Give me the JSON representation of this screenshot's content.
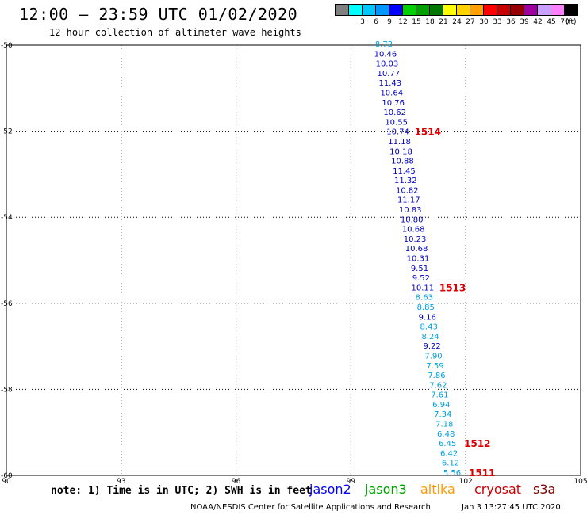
{
  "header": {
    "title": "12:00 – 23:59 UTC 01/02/2020",
    "subtitle": "12 hour collection of altimeter wave heights"
  },
  "legend": {
    "unit": "(ft)",
    "items": [
      {
        "label": "",
        "color": "#808080"
      },
      {
        "label": "3",
        "color": "#00ffff"
      },
      {
        "label": "6",
        "color": "#00c8ff"
      },
      {
        "label": "9",
        "color": "#0096ff"
      },
      {
        "label": "12",
        "color": "#0000ff"
      },
      {
        "label": "15",
        "color": "#00d000"
      },
      {
        "label": "18",
        "color": "#00a000"
      },
      {
        "label": "21",
        "color": "#007800"
      },
      {
        "label": "24",
        "color": "#ffff00"
      },
      {
        "label": "27",
        "color": "#ffd200"
      },
      {
        "label": "30",
        "color": "#ffa000"
      },
      {
        "label": "33",
        "color": "#ff0000"
      },
      {
        "label": "36",
        "color": "#c80000"
      },
      {
        "label": "39",
        "color": "#960000"
      },
      {
        "label": "42",
        "color": "#a000a0"
      },
      {
        "label": "45",
        "color": "#c8a0ff"
      },
      {
        "label": "70",
        "color": "#ff80ff"
      },
      {
        "label": "",
        "color": "#000000"
      }
    ]
  },
  "map": {
    "lon_range": [
      90,
      105
    ],
    "lat_range": [
      -60,
      -50
    ],
    "lon_ticks": [
      "90",
      "93",
      "96",
      "99",
      "102",
      "105"
    ],
    "lat_ticks": [
      "-50",
      "-52",
      "-54",
      "-56",
      "-58",
      "-60"
    ],
    "observations": [
      {
        "v": "8.72",
        "color": "#00a0e0"
      },
      {
        "v": "10.46",
        "color": "#0000c0"
      },
      {
        "v": "10.03",
        "color": "#0000c0"
      },
      {
        "v": "10.77",
        "color": "#0000c0"
      },
      {
        "v": "11.43",
        "color": "#0000c0"
      },
      {
        "v": "10.64",
        "color": "#0000c0"
      },
      {
        "v": "10.76",
        "color": "#0000c0"
      },
      {
        "v": "10.62",
        "color": "#0000c0"
      },
      {
        "v": "10.55",
        "color": "#0000c0"
      },
      {
        "v": "10.74",
        "color": "#0000c0"
      },
      {
        "v": "11.18",
        "color": "#0000c0"
      },
      {
        "v": "10.18",
        "color": "#0000c0"
      },
      {
        "v": "10.88",
        "color": "#0000c0"
      },
      {
        "v": "11.45",
        "color": "#0000c0"
      },
      {
        "v": "11.32",
        "color": "#0000c0"
      },
      {
        "v": "10.82",
        "color": "#0000c0"
      },
      {
        "v": "11.17",
        "color": "#0000c0"
      },
      {
        "v": "10.83",
        "color": "#0000c0"
      },
      {
        "v": "10.80",
        "color": "#0000c0"
      },
      {
        "v": "10.68",
        "color": "#0000c0"
      },
      {
        "v": "10.23",
        "color": "#0000c0"
      },
      {
        "v": "10.68",
        "color": "#0000c0"
      },
      {
        "v": "10.31",
        "color": "#0000c0"
      },
      {
        "v": "9.51",
        "color": "#0000c0"
      },
      {
        "v": "9.52",
        "color": "#0000c0"
      },
      {
        "v": "10.11",
        "color": "#0000c0"
      },
      {
        "v": "8.63",
        "color": "#00a0e0"
      },
      {
        "v": "8.85",
        "color": "#00a0e0"
      },
      {
        "v": "9.16",
        "color": "#0000c0"
      },
      {
        "v": "8.43",
        "color": "#00a0e0"
      },
      {
        "v": "8.24",
        "color": "#00a0e0"
      },
      {
        "v": "9.22",
        "color": "#0000c0"
      },
      {
        "v": "7.90",
        "color": "#00a0e0"
      },
      {
        "v": "7.59",
        "color": "#00a0e0"
      },
      {
        "v": "7.86",
        "color": "#00a0e0"
      },
      {
        "v": "7.62",
        "color": "#00a0e0"
      },
      {
        "v": "7.61",
        "color": "#00a0e0"
      },
      {
        "v": "6.94",
        "color": "#00a0e0"
      },
      {
        "v": "7.34",
        "color": "#00a0e0"
      },
      {
        "v": "7.18",
        "color": "#00a0e0"
      },
      {
        "v": "6.48",
        "color": "#00a0e0"
      },
      {
        "v": "6.45",
        "color": "#00a0e0"
      },
      {
        "v": "6.42",
        "color": "#00a0e0"
      },
      {
        "v": "6.12",
        "color": "#00a0e0"
      },
      {
        "v": "5.56",
        "color": "#00a0e0"
      }
    ],
    "time_marks": [
      {
        "label": "1514",
        "at_index": 9
      },
      {
        "label": "1513",
        "at_index": 25
      },
      {
        "label": "1512",
        "at_index": 41
      },
      {
        "label": "1511",
        "at_index": 44
      }
    ]
  },
  "footer": {
    "note": "note: 1) Time is in UTC; 2) SWH is in feet",
    "satellites": [
      {
        "name": "jason2",
        "color": "#0000ff"
      },
      {
        "name": "jason3",
        "color": "#00a000"
      },
      {
        "name": "altika",
        "color": "#ff9900"
      },
      {
        "name": "cryosat",
        "color": "#cc0000"
      },
      {
        "name": "s3a",
        "color": "#800000"
      }
    ],
    "credit": "NOAA/NESDIS Center for Satellite Applications and Research",
    "timestamp": "Jan  3 13:27:45 UTC 2020"
  }
}
